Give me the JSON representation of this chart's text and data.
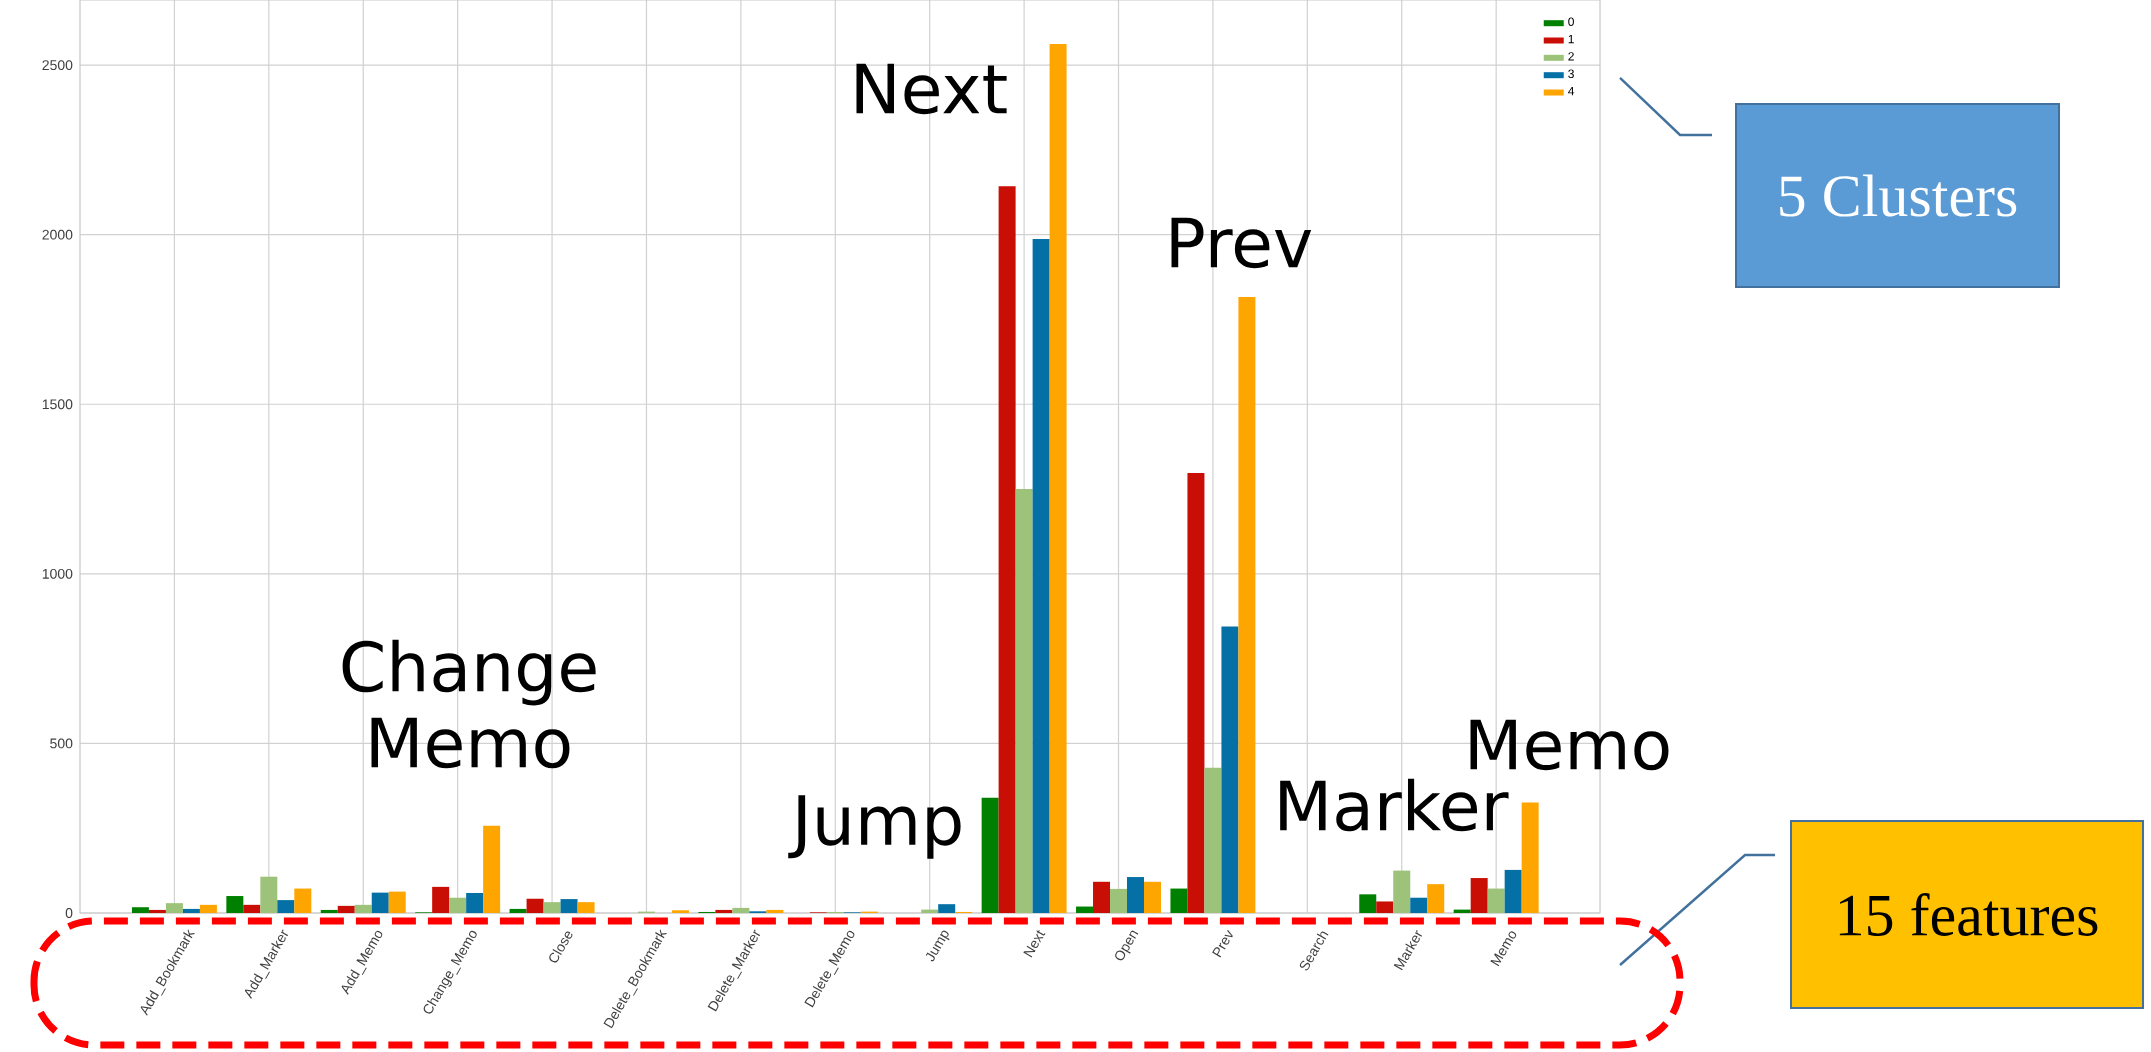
{
  "chart_data": {
    "type": "bar",
    "categories": [
      "Add_Bookmark",
      "Add_Marker",
      "Add_Memo",
      "Change_Memo",
      "Close",
      "Delete_Bookmark",
      "Delete_Marker",
      "Delete_Memo",
      "Jump",
      "Next",
      "Open",
      "Prev",
      "Search",
      "Marker",
      "Memo"
    ],
    "series": [
      {
        "name": "0",
        "color": "#008000",
        "values": [
          17,
          50,
          9,
          2,
          12,
          null,
          3,
          null,
          0,
          340,
          19,
          72,
          0,
          55,
          10
        ]
      },
      {
        "name": "1",
        "color": "#c80e05",
        "values": [
          9,
          24,
          21,
          77,
          42,
          null,
          9,
          2,
          0,
          2143,
          92,
          1297,
          0,
          34,
          103
        ]
      },
      {
        "name": "2",
        "color": "#9dc37a",
        "values": [
          29,
          107,
          24,
          45,
          32,
          4,
          15,
          3,
          10,
          1250,
          71,
          428,
          0,
          125,
          72
        ]
      },
      {
        "name": "3",
        "color": "#0570a5",
        "values": [
          12,
          38,
          60,
          59,
          41,
          null,
          5,
          2,
          26,
          1987,
          106,
          845,
          0,
          45,
          127
        ]
      },
      {
        "name": "4",
        "color": "#ffa500",
        "values": [
          24,
          72,
          63,
          257,
          32,
          8,
          9,
          4,
          3,
          2562,
          92,
          1816,
          0,
          85,
          326
        ]
      }
    ],
    "ylim": [
      0,
      2692
    ],
    "yticks": [
      0,
      500,
      1000,
      1500,
      2000,
      2500
    ],
    "grid": true,
    "legend": "top right",
    "annotations": [
      "Next",
      "Prev",
      "Change Memo",
      "Jump",
      "Marker",
      "Memo",
      "5 Clusters",
      "15 features"
    ]
  }
}
